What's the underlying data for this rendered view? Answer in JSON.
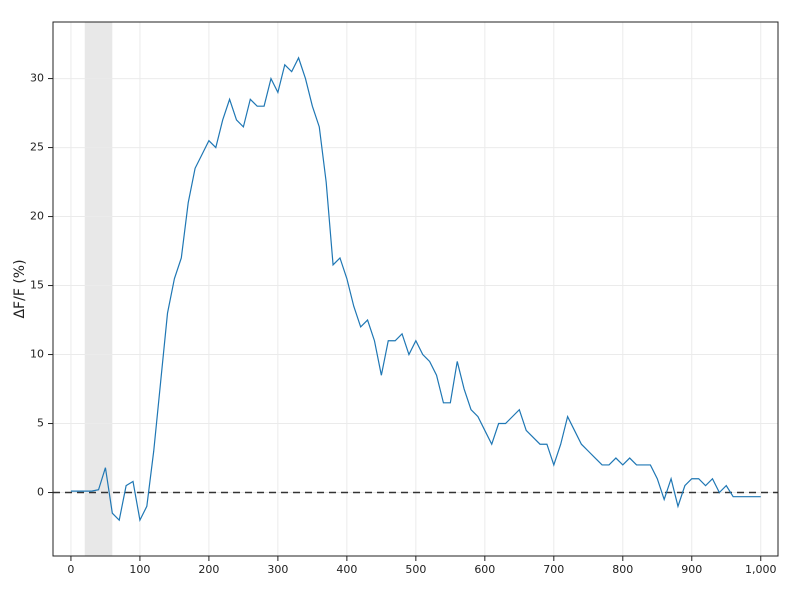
{
  "chart_data": {
    "type": "line",
    "y_label": "ΔF/F (%)",
    "x": [
      0,
      10,
      20,
      30,
      40,
      50,
      60,
      70,
      80,
      90,
      100,
      110,
      120,
      130,
      140,
      150,
      160,
      170,
      180,
      190,
      200,
      210,
      220,
      230,
      240,
      250,
      260,
      270,
      280,
      290,
      300,
      310,
      320,
      330,
      340,
      350,
      360,
      370,
      380,
      390,
      400,
      410,
      420,
      430,
      440,
      450,
      460,
      470,
      480,
      490,
      500,
      510,
      520,
      530,
      540,
      550,
      560,
      570,
      580,
      590,
      600,
      610,
      620,
      630,
      640,
      650,
      660,
      670,
      680,
      690,
      700,
      710,
      720,
      730,
      740,
      750,
      760,
      770,
      780,
      790,
      800,
      810,
      820,
      830,
      840,
      850,
      860,
      870,
      880,
      890,
      900,
      910,
      920,
      930,
      940,
      950,
      960,
      970,
      980,
      990,
      1000
    ],
    "series": [
      {
        "name": "ΔF/F",
        "color": "#1f77b4",
        "values": [
          0.1,
          0.1,
          0.1,
          0.1,
          0.2,
          1.8,
          -1.5,
          -2,
          0.5,
          0.8,
          -2,
          -1,
          3,
          8,
          13,
          15.5,
          17,
          21,
          23.5,
          24.5,
          25.5,
          25,
          27,
          28.5,
          27,
          26.5,
          28.5,
          28,
          28,
          30,
          29,
          31,
          30.5,
          31.5,
          30,
          28,
          26.5,
          22.5,
          16.5,
          17,
          15.5,
          13.5,
          12,
          12.5,
          11,
          8.5,
          11,
          11,
          11.5,
          10,
          11,
          10,
          9.5,
          8.5,
          6.5,
          6.5,
          9.5,
          7.5,
          6,
          5.5,
          4.5,
          3.5,
          5,
          5,
          5.5,
          6,
          4.5,
          4,
          3.5,
          3.5,
          2,
          3.5,
          5.5,
          4.5,
          3.5,
          3,
          2.5,
          2,
          2,
          2.5,
          2,
          2.5,
          2,
          2,
          2,
          1,
          -0.5,
          1,
          -1,
          0.5,
          1,
          1,
          0.5,
          1,
          0,
          0.5,
          -0.3,
          -0.3,
          -0.3,
          -0.3,
          -0.3
        ]
      }
    ],
    "xlim": [
      -26,
      1025
    ],
    "ylim": [
      -4.6,
      34.1
    ],
    "xticks": [
      0,
      100,
      200,
      300,
      400,
      500,
      600,
      700,
      800,
      900,
      {
        "value": 1000,
        "label": "1,000"
      }
    ],
    "yticks": [
      0,
      5,
      10,
      15,
      20,
      25,
      30
    ],
    "grid": true,
    "reference_line": 0,
    "shaded_span": [
      20,
      60
    ]
  }
}
